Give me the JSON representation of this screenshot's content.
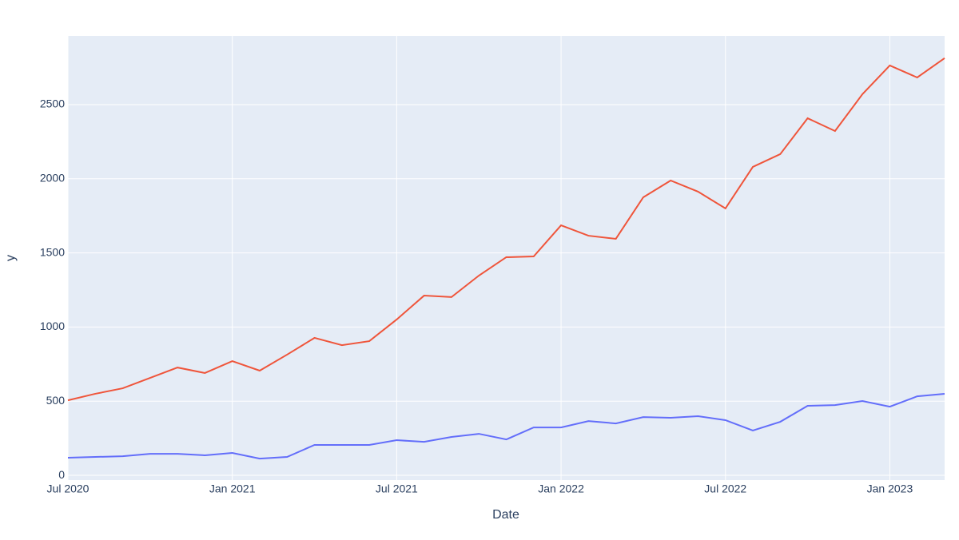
{
  "chart_data": {
    "type": "line",
    "x_label": "Date",
    "y_label": "y",
    "x": [
      "2020-07",
      "2020-08",
      "2020-09",
      "2020-10",
      "2020-11",
      "2020-12",
      "2021-01",
      "2021-02",
      "2021-03",
      "2021-04",
      "2021-05",
      "2021-06",
      "2021-07",
      "2021-08",
      "2021-09",
      "2021-10",
      "2021-11",
      "2021-12",
      "2022-01",
      "2022-02",
      "2022-03",
      "2022-04",
      "2022-05",
      "2022-06",
      "2022-07",
      "2022-08",
      "2022-09",
      "2022-10",
      "2022-11",
      "2022-12",
      "2023-01",
      "2023-02",
      "2023-03"
    ],
    "series": [
      {
        "color": "#EF553B",
        "values": [
          506,
          550,
          587,
          657,
          727,
          690,
          770,
          706,
          814,
          927,
          878,
          905,
          1051,
          1212,
          1202,
          1347,
          1471,
          1476,
          1686,
          1616,
          1595,
          1875,
          1988,
          1913,
          1800,
          2080,
          2166,
          2408,
          2322,
          2570,
          2764,
          2683,
          2813
        ]
      },
      {
        "color": "#636EFA",
        "values": [
          119,
          124,
          129,
          145,
          145,
          135,
          151,
          113,
          124,
          205,
          205,
          205,
          237,
          226,
          259,
          280,
          242,
          323,
          323,
          366,
          350,
          393,
          388,
          399,
          372,
          302,
          361,
          469,
          474,
          501,
          463,
          533,
          550
        ]
      }
    ],
    "xlim": [
      "2020-07",
      "2023-03"
    ],
    "xticks": [
      {
        "value": "2020-07",
        "label": "Jul 2020"
      },
      {
        "value": "2021-01",
        "label": "Jan 2021"
      },
      {
        "value": "2021-07",
        "label": "Jul 2021"
      },
      {
        "value": "2022-01",
        "label": "Jan 2022"
      },
      {
        "value": "2022-07",
        "label": "Jul 2022"
      },
      {
        "value": "2023-01",
        "label": "Jan 2023"
      }
    ],
    "ylim": [
      -32,
      2963
    ],
    "yticks": [
      0,
      500,
      1000,
      1500,
      2000,
      2500
    ],
    "grid": true
  }
}
